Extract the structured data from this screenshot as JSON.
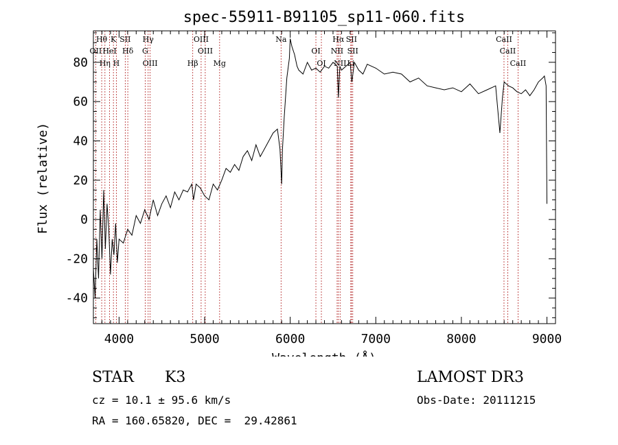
{
  "chart_data": {
    "type": "line",
    "title": "spec-55911-B91105_sp11-060.fits",
    "xlabel": "Wavelength (Å)",
    "ylabel": "Flux (relative)",
    "xlim": [
      3700,
      9100
    ],
    "ylim": [
      -53,
      96
    ],
    "xticks": [
      4000,
      5000,
      6000,
      7000,
      8000,
      9000
    ],
    "yticks": [
      -40,
      -20,
      0,
      20,
      40,
      60,
      80
    ],
    "series": [
      {
        "name": "flux",
        "x": [
          3700,
          3720,
          3740,
          3760,
          3780,
          3800,
          3820,
          3840,
          3860,
          3880,
          3900,
          3920,
          3940,
          3960,
          3980,
          4000,
          4050,
          4100,
          4150,
          4200,
          4250,
          4300,
          4350,
          4400,
          4450,
          4500,
          4550,
          4600,
          4650,
          4700,
          4750,
          4800,
          4850,
          4870,
          4900,
          4950,
          5000,
          5050,
          5100,
          5150,
          5200,
          5250,
          5300,
          5350,
          5400,
          5450,
          5500,
          5550,
          5600,
          5650,
          5700,
          5750,
          5800,
          5850,
          5880,
          5900,
          5910,
          5930,
          5960,
          5990,
          6000,
          6020,
          6050,
          6080,
          6100,
          6150,
          6200,
          6250,
          6300,
          6350,
          6400,
          6450,
          6500,
          6550,
          6563,
          6580,
          6600,
          6650,
          6700,
          6720,
          6750,
          6800,
          6850,
          6900,
          6950,
          7000,
          7100,
          7200,
          7300,
          7400,
          7500,
          7600,
          7700,
          7800,
          7900,
          8000,
          8100,
          8200,
          8300,
          8400,
          8450,
          8480,
          8500,
          8550,
          8600,
          8650,
          8700,
          8750,
          8800,
          8850,
          8900,
          8950,
          8970,
          8990,
          9000
        ],
        "y": [
          -25,
          -40,
          -10,
          -30,
          5,
          -20,
          15,
          -15,
          8,
          -5,
          -28,
          -10,
          -18,
          -2,
          -22,
          -10,
          -12,
          -5,
          -8,
          2,
          -2,
          5,
          0,
          10,
          2,
          8,
          12,
          6,
          14,
          10,
          15,
          14,
          18,
          10,
          18,
          16,
          12,
          10,
          18,
          15,
          20,
          26,
          24,
          28,
          25,
          32,
          35,
          30,
          38,
          32,
          36,
          40,
          44,
          46,
          36,
          18,
          36,
          52,
          72,
          82,
          92,
          88,
          84,
          78,
          76,
          74,
          80,
          76,
          77,
          75,
          78,
          77,
          80,
          78,
          62,
          78,
          76,
          78,
          80,
          70,
          80,
          76,
          74,
          79,
          78,
          77,
          74,
          75,
          74,
          70,
          72,
          68,
          67,
          66,
          67,
          65,
          69,
          64,
          66,
          68,
          44,
          62,
          70,
          68,
          67,
          65,
          64,
          66,
          63,
          66,
          70,
          72,
          73,
          68,
          8
        ]
      }
    ],
    "line_colors": {
      "spectrum": "#000000",
      "lines": "#b22222"
    },
    "lines": [
      {
        "label": "Hθ",
        "wl": 3797
      },
      {
        "label": "OII",
        "wl": 3727
      },
      {
        "label": "Hη",
        "wl": 3835
      },
      {
        "label": "K",
        "wl": 3934
      },
      {
        "label": "HeI",
        "wl": 3889
      },
      {
        "label": "H",
        "wl": 3968
      },
      {
        "label": "SII",
        "wl": 4072
      },
      {
        "label": "Hδ",
        "wl": 4102
      },
      {
        "label": "OIII",
        "wl": 4363
      },
      {
        "label": "Hγ",
        "wl": 4340
      },
      {
        "label": "G",
        "wl": 4305
      },
      {
        "label": "Hβ",
        "wl": 4861
      },
      {
        "label": "OIII",
        "wl": 4959
      },
      {
        "label": "OIII",
        "wl": 5007
      },
      {
        "label": "Mg",
        "wl": 5175
      },
      {
        "label": "Na",
        "wl": 5893
      },
      {
        "label": "OI",
        "wl": 6300
      },
      {
        "label": "OI",
        "wl": 6364
      },
      {
        "label": "Hα",
        "wl": 6563
      },
      {
        "label": "NII",
        "wl": 6548
      },
      {
        "label": "NII",
        "wl": 6583
      },
      {
        "label": "SII",
        "wl": 6716
      },
      {
        "label": "SII",
        "wl": 6731
      },
      {
        "label": "Li",
        "wl": 6708
      },
      {
        "label": "CaII",
        "wl": 8498
      },
      {
        "label": "CaII",
        "wl": 8542
      },
      {
        "label": "CaII",
        "wl": 8662
      }
    ]
  },
  "info": {
    "object_class": "STAR",
    "subclass": "K3",
    "survey": "LAMOST DR3",
    "cz_line": "cz = 10.1 ± 95.6 km/s",
    "obs_date_line": "Obs-Date: 20111215",
    "coords_line": "RA = 160.65820, DEC =  29.42861"
  }
}
